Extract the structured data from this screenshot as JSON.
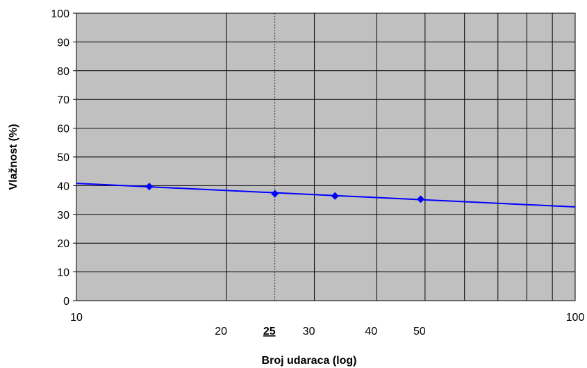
{
  "chart_data": {
    "type": "scatter",
    "xlabel": "Broj udaraca (log)",
    "ylabel": "Vlažnost (%)",
    "x_scale": "log",
    "xlim": [
      10,
      100
    ],
    "ylim": [
      0,
      100
    ],
    "x_ticks": [
      "10",
      "20",
      "25",
      "30",
      "40",
      "50",
      "100"
    ],
    "x_tick_values": [
      10,
      20,
      25,
      30,
      40,
      50,
      100
    ],
    "x_highlight_tick": "25",
    "y_ticks": [
      "0",
      "10",
      "20",
      "30",
      "40",
      "50",
      "60",
      "70",
      "80",
      "90",
      "100"
    ],
    "y_tick_values": [
      0,
      10,
      20,
      30,
      40,
      50,
      60,
      70,
      80,
      90,
      100
    ],
    "x_gridlines": [
      20,
      25,
      30,
      40,
      50,
      60,
      70,
      80,
      90
    ],
    "grid": true,
    "plot_background": "#c0c0c0",
    "series": [
      {
        "marker": "diamond",
        "color": "#0000ff",
        "x": [
          14,
          25,
          33,
          49
        ],
        "y": [
          39.7,
          37.2,
          36.4,
          35.3
        ]
      }
    ],
    "trendline": {
      "color": "#0000ff",
      "x": [
        10,
        100
      ],
      "y": [
        40.8,
        32.6
      ]
    }
  }
}
